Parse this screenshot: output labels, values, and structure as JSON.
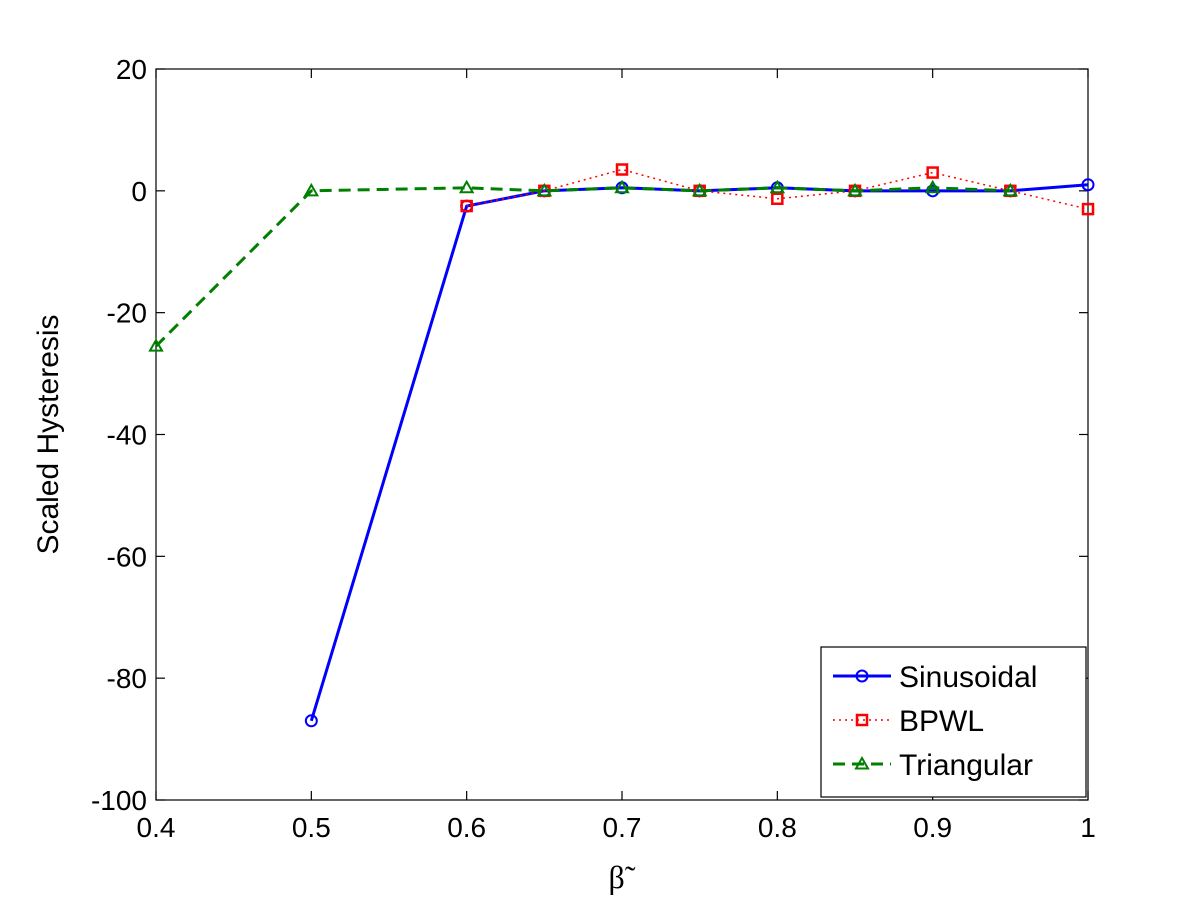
{
  "chart_data": {
    "type": "line",
    "title": "",
    "xlabel": "β˜",
    "ylabel": "Scaled Hysteresis",
    "xlim": [
      0.4,
      1
    ],
    "ylim": [
      -100,
      20
    ],
    "xticks": [
      "0.4",
      "0.5",
      "0.6",
      "0.7",
      "0.8",
      "0.9",
      "1"
    ],
    "yticks": [
      "20",
      "0",
      "-20",
      "-40",
      "-60",
      "-80",
      "-100"
    ],
    "xtick_values": [
      0.4,
      0.5,
      0.6,
      0.7,
      0.8,
      0.9,
      1.0
    ],
    "ytick_values": [
      20,
      0,
      -20,
      -40,
      -60,
      -80,
      -100
    ],
    "grid": false,
    "legend_position": "bottom-right",
    "series": [
      {
        "name": "Sinusoidal",
        "color": "#0000ff",
        "linestyle": "solid",
        "marker": "circle",
        "x": [
          0.5,
          0.6,
          0.65,
          0.7,
          0.75,
          0.8,
          0.85,
          0.9,
          0.95,
          1.0
        ],
        "y": [
          -87,
          -2.5,
          0,
          0.5,
          0,
          0.5,
          0,
          0,
          0,
          1
        ]
      },
      {
        "name": "BPWL",
        "color": "#ff0000",
        "linestyle": "dotted",
        "marker": "square",
        "x": [
          0.6,
          0.65,
          0.7,
          0.75,
          0.8,
          0.85,
          0.9,
          0.95,
          1.0
        ],
        "y": [
          -2.5,
          0,
          3.5,
          0,
          -1.3,
          0,
          3,
          0,
          -3
        ]
      },
      {
        "name": "Triangular",
        "color": "#008000",
        "linestyle": "dashed",
        "marker": "triangle",
        "x": [
          0.4,
          0.5,
          0.6,
          0.65,
          0.7,
          0.75,
          0.8,
          0.85,
          0.9,
          0.95
        ],
        "y": [
          -25.5,
          0,
          0.5,
          0,
          0.5,
          0,
          0.5,
          0,
          0.5,
          0
        ]
      }
    ]
  }
}
